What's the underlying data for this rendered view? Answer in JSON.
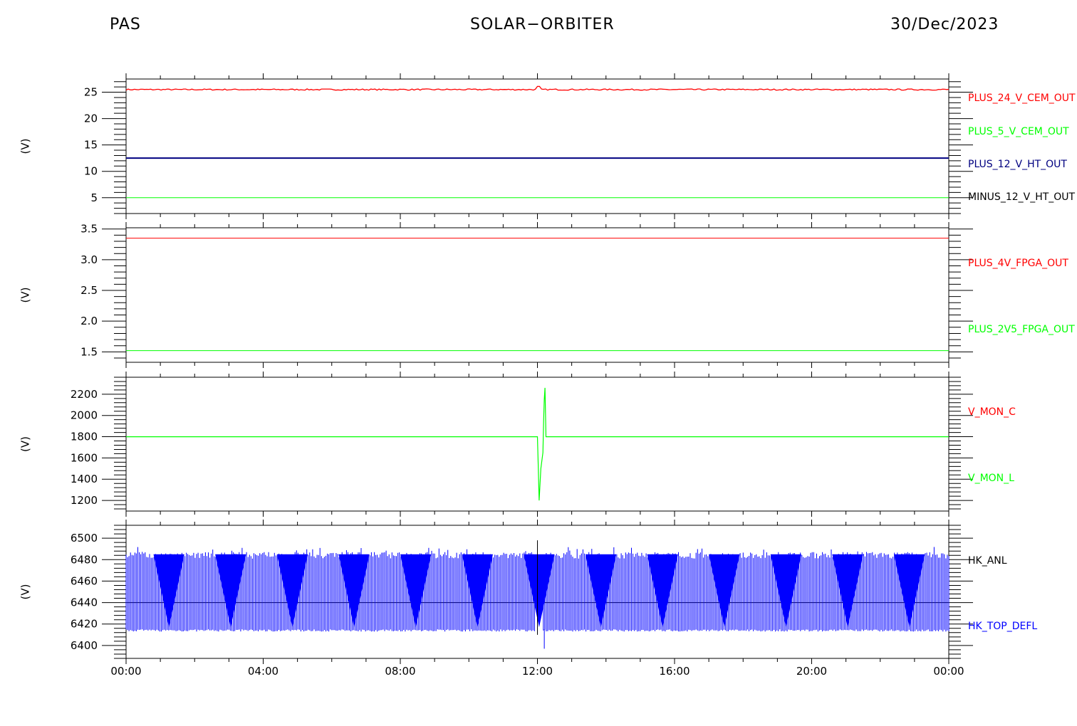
{
  "header": {
    "left": "PAS",
    "center": "SOLAR−ORBITER",
    "right": "30/Dec/2023"
  },
  "chart_data": [
    {
      "type": "line",
      "ylabel": "(V)",
      "ylim": [
        2,
        27.5
      ],
      "yticks": [
        5,
        10,
        15,
        20,
        25
      ],
      "xlim": [
        0,
        24
      ],
      "series": [
        {
          "name": "PLUS_24_V_CEM_OUT",
          "color": "#ff0000",
          "value": 25.5,
          "noise": 0.12,
          "glitch": 0.6
        },
        {
          "name": "PLUS_5_V_CEM_OUT",
          "color": "#00ff00",
          "value": 5.0,
          "noise": 0
        },
        {
          "name": "PLUS_12_V_HT_OUT",
          "color": "#000080",
          "value": 12.5,
          "noise": 0
        },
        {
          "name": "MINUS_12_V_HT_OUT",
          "color": "#000000",
          "value": null,
          "noise": 0
        }
      ]
    },
    {
      "type": "line",
      "ylabel": "(V)",
      "ylim": [
        1.33,
        3.52
      ],
      "yticks": [
        "1.5",
        "2.0",
        "2.5",
        "3.0",
        "3.5"
      ],
      "xlim": [
        0,
        24
      ],
      "series": [
        {
          "name": "PLUS_4V_FPGA_OUT",
          "color": "#ff0000",
          "value": 3.35,
          "noise": 0
        },
        {
          "name": "PLUS_2V5_FPGA_OUT",
          "color": "#00ff00",
          "value": 1.52,
          "noise": 0
        }
      ]
    },
    {
      "type": "line",
      "ylabel": "(V)",
      "ylim": [
        1100,
        2360
      ],
      "yticks": [
        1200,
        1400,
        1600,
        1800,
        2000,
        2200
      ],
      "xlim": [
        0,
        24
      ],
      "series": [
        {
          "name": "V_MON_C",
          "color": "#ff0000",
          "value": null
        },
        {
          "name": "V_MON_L",
          "color": "#00ff00",
          "value": 1800,
          "points": [
            [
              0,
              1800
            ],
            [
              12.0,
              1800
            ],
            [
              12.02,
              1560
            ],
            [
              12.05,
              1200
            ],
            [
              12.1,
              1500
            ],
            [
              12.16,
              1650
            ],
            [
              12.18,
              1950
            ],
            [
              12.2,
              2150
            ],
            [
              12.22,
              2260
            ],
            [
              12.25,
              1800
            ],
            [
              24,
              1800
            ]
          ]
        }
      ]
    },
    {
      "type": "line",
      "ylabel": "(V)",
      "ylim": [
        6388,
        6512
      ],
      "yticks": [
        6400,
        6420,
        6440,
        6460,
        6480,
        6500
      ],
      "xlim": [
        0,
        24
      ],
      "xticks": [
        "00:00",
        "04:00",
        "08:00",
        "12:00",
        "16:00",
        "20:00",
        "00:00"
      ],
      "series": [
        {
          "name": "HK_ANL",
          "color": "#000000",
          "value": 6440
        },
        {
          "name": "HK_TOP_DEFL",
          "color": "#0000ff",
          "low": 6413,
          "high": 6487
        }
      ]
    }
  ]
}
